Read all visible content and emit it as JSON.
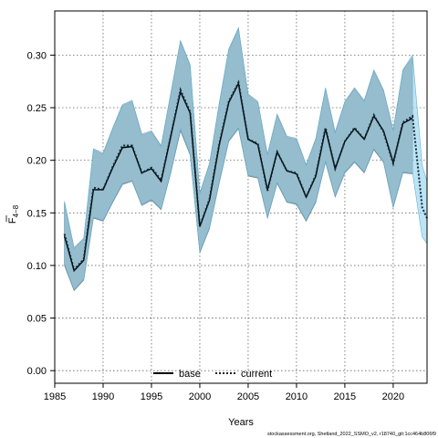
{
  "chart_data": {
    "type": "line",
    "title": "",
    "xlabel": "Years",
    "ylabel": "F4-8",
    "ylabel_main": "F",
    "ylabel_sub": "4−8",
    "xlim": [
      1985,
      2023.5
    ],
    "ylim": [
      -0.012,
      0.342
    ],
    "xticks": [
      1985,
      1990,
      1995,
      2000,
      2005,
      2010,
      2015,
      2020
    ],
    "yticks": [
      0.0,
      0.05,
      0.1,
      0.15,
      0.2,
      0.25,
      0.3
    ],
    "ytick_labels": [
      "0.00",
      "0.05",
      "0.10",
      "0.15",
      "0.20",
      "0.25",
      "0.30"
    ],
    "grid": true,
    "legend_position": "bottom",
    "legend": [
      {
        "name": "base",
        "style": "solid",
        "color": "#000000"
      },
      {
        "name": "current",
        "style": "dotted",
        "color": "#000000"
      }
    ],
    "footnote": "stockassessment.org, Shetland_2022_SSMO_v2, r18740_git:1cc464b806f9",
    "colors": {
      "base_band": "#a9a9a9",
      "current_band": "#87ceeb",
      "line": "#000000"
    },
    "x": [
      1986,
      1987,
      1988,
      1989,
      1990,
      1991,
      1992,
      1993,
      1994,
      1995,
      1996,
      1997,
      1998,
      1999,
      2000,
      2001,
      2002,
      2003,
      2004,
      2005,
      2006,
      2007,
      2008,
      2009,
      2010,
      2011,
      2012,
      2013,
      2014,
      2015,
      2016,
      2017,
      2018,
      2019,
      2020,
      2021,
      2022
    ],
    "series": [
      {
        "name": "base",
        "values": [
          0.128,
          0.095,
          0.105,
          0.172,
          0.172,
          0.193,
          0.212,
          0.213,
          0.188,
          0.192,
          0.18,
          0.223,
          0.265,
          0.245,
          0.137,
          0.162,
          0.214,
          0.255,
          0.273,
          0.22,
          0.215,
          0.172,
          0.208,
          0.19,
          0.187,
          0.165,
          0.185,
          0.23,
          0.192,
          0.218,
          0.23,
          0.22,
          0.242,
          0.228,
          0.198,
          0.235,
          0.24
        ],
        "lower": [
          0.1,
          0.076,
          0.086,
          0.145,
          0.142,
          0.16,
          0.177,
          0.18,
          0.157,
          0.162,
          0.153,
          0.188,
          0.228,
          0.205,
          0.112,
          0.135,
          0.178,
          0.218,
          0.23,
          0.185,
          0.183,
          0.145,
          0.178,
          0.16,
          0.158,
          0.142,
          0.16,
          0.198,
          0.165,
          0.188,
          0.198,
          0.188,
          0.21,
          0.198,
          0.155,
          0.188,
          0.187
        ],
        "upper": [
          0.16,
          0.116,
          0.125,
          0.21,
          0.206,
          0.23,
          0.252,
          0.256,
          0.224,
          0.227,
          0.213,
          0.263,
          0.313,
          0.29,
          0.168,
          0.196,
          0.253,
          0.305,
          0.325,
          0.262,
          0.255,
          0.205,
          0.243,
          0.222,
          0.22,
          0.195,
          0.22,
          0.268,
          0.226,
          0.255,
          0.268,
          0.256,
          0.285,
          0.266,
          0.228,
          0.285,
          0.298
        ]
      },
      {
        "name": "current",
        "x": [
          1986,
          1987,
          1988,
          1989,
          1990,
          1991,
          1992,
          1993,
          1994,
          1995,
          1996,
          1997,
          1998,
          1999,
          2000,
          2001,
          2002,
          2003,
          2004,
          2005,
          2006,
          2007,
          2008,
          2009,
          2010,
          2011,
          2012,
          2013,
          2014,
          2015,
          2016,
          2017,
          2018,
          2019,
          2020,
          2021,
          2022,
          2023,
          2023.5
        ],
        "values": [
          0.13,
          0.096,
          0.106,
          0.174,
          0.172,
          0.194,
          0.214,
          0.214,
          0.188,
          0.193,
          0.181,
          0.223,
          0.267,
          0.246,
          0.137,
          0.163,
          0.215,
          0.256,
          0.274,
          0.22,
          0.216,
          0.171,
          0.208,
          0.19,
          0.188,
          0.165,
          0.186,
          0.231,
          0.192,
          0.218,
          0.231,
          0.22,
          0.243,
          0.227,
          0.197,
          0.236,
          0.242,
          0.155,
          0.145
        ],
        "lower": [
          0.102,
          0.077,
          0.087,
          0.146,
          0.143,
          0.161,
          0.178,
          0.181,
          0.158,
          0.163,
          0.154,
          0.189,
          0.23,
          0.206,
          0.113,
          0.136,
          0.179,
          0.219,
          0.231,
          0.186,
          0.184,
          0.146,
          0.179,
          0.161,
          0.159,
          0.143,
          0.161,
          0.199,
          0.166,
          0.189,
          0.199,
          0.189,
          0.211,
          0.199,
          0.156,
          0.189,
          0.188,
          0.127,
          0.121
        ],
        "upper": [
          0.161,
          0.117,
          0.126,
          0.211,
          0.207,
          0.231,
          0.253,
          0.257,
          0.225,
          0.228,
          0.214,
          0.264,
          0.314,
          0.291,
          0.169,
          0.197,
          0.254,
          0.306,
          0.326,
          0.263,
          0.256,
          0.206,
          0.244,
          0.223,
          0.221,
          0.196,
          0.221,
          0.269,
          0.227,
          0.256,
          0.269,
          0.257,
          0.286,
          0.267,
          0.229,
          0.286,
          0.3,
          0.195,
          0.18
        ]
      }
    ]
  }
}
